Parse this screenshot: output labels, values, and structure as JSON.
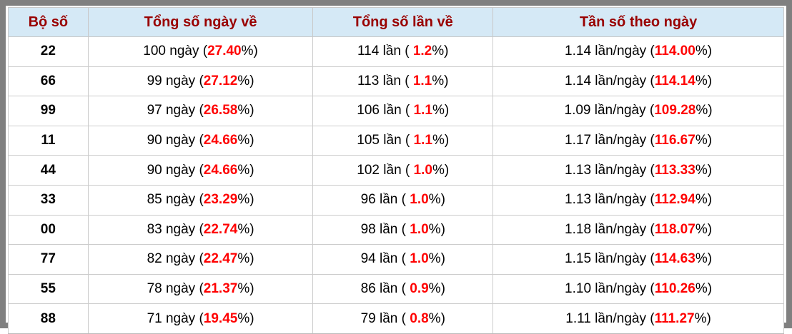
{
  "colors": {
    "frame_border": "#808080",
    "header_bg": "#d5e9f6",
    "header_text": "#990000",
    "highlight_red": "#ff0000",
    "body_text": "#000000",
    "grid_line": "#cccccc"
  },
  "table": {
    "headers": [
      "Bộ số",
      "Tổng số ngày về",
      "Tổng số lần về",
      "Tần số theo ngày"
    ],
    "rows": [
      [
        [
          {
            "t": "22"
          }
        ],
        [
          {
            "t": "100 ngày ("
          },
          {
            "t": "27.40",
            "hl": true
          },
          {
            "t": "%)"
          }
        ],
        [
          {
            "t": "114 lần ( "
          },
          {
            "t": "1.2",
            "hl": true
          },
          {
            "t": "%)"
          }
        ],
        [
          {
            "t": "1.14 lần/ngày ("
          },
          {
            "t": "114.00",
            "hl": true
          },
          {
            "t": "%)"
          }
        ]
      ],
      [
        [
          {
            "t": "66"
          }
        ],
        [
          {
            "t": "99 ngày ("
          },
          {
            "t": "27.12",
            "hl": true
          },
          {
            "t": "%)"
          }
        ],
        [
          {
            "t": "113 lần ( "
          },
          {
            "t": "1.1",
            "hl": true
          },
          {
            "t": "%)"
          }
        ],
        [
          {
            "t": "1.14 lần/ngày ("
          },
          {
            "t": "114.14",
            "hl": true
          },
          {
            "t": "%)"
          }
        ]
      ],
      [
        [
          {
            "t": "99"
          }
        ],
        [
          {
            "t": "97 ngày ("
          },
          {
            "t": "26.58",
            "hl": true
          },
          {
            "t": "%)"
          }
        ],
        [
          {
            "t": "106 lần ( "
          },
          {
            "t": "1.1",
            "hl": true
          },
          {
            "t": "%)"
          }
        ],
        [
          {
            "t": "1.09 lần/ngày ("
          },
          {
            "t": "109.28",
            "hl": true
          },
          {
            "t": "%)"
          }
        ]
      ],
      [
        [
          {
            "t": "11"
          }
        ],
        [
          {
            "t": "90 ngày ("
          },
          {
            "t": "24.66",
            "hl": true
          },
          {
            "t": "%)"
          }
        ],
        [
          {
            "t": "105 lần ( "
          },
          {
            "t": "1.1",
            "hl": true
          },
          {
            "t": "%)"
          }
        ],
        [
          {
            "t": "1.17 lần/ngày ("
          },
          {
            "t": "116.67",
            "hl": true
          },
          {
            "t": "%)"
          }
        ]
      ],
      [
        [
          {
            "t": "44"
          }
        ],
        [
          {
            "t": "90 ngày ("
          },
          {
            "t": "24.66",
            "hl": true
          },
          {
            "t": "%)"
          }
        ],
        [
          {
            "t": "102 lần ( "
          },
          {
            "t": "1.0",
            "hl": true
          },
          {
            "t": "%)"
          }
        ],
        [
          {
            "t": "1.13 lần/ngày ("
          },
          {
            "t": "113.33",
            "hl": true
          },
          {
            "t": "%)"
          }
        ]
      ],
      [
        [
          {
            "t": "33"
          }
        ],
        [
          {
            "t": "85 ngày ("
          },
          {
            "t": "23.29",
            "hl": true
          },
          {
            "t": "%)"
          }
        ],
        [
          {
            "t": "96 lần ( "
          },
          {
            "t": "1.0",
            "hl": true
          },
          {
            "t": "%)"
          }
        ],
        [
          {
            "t": "1.13 lần/ngày ("
          },
          {
            "t": "112.94",
            "hl": true
          },
          {
            "t": "%)"
          }
        ]
      ],
      [
        [
          {
            "t": "00"
          }
        ],
        [
          {
            "t": "83 ngày ("
          },
          {
            "t": "22.74",
            "hl": true
          },
          {
            "t": "%)"
          }
        ],
        [
          {
            "t": "98 lần ( "
          },
          {
            "t": "1.0",
            "hl": true
          },
          {
            "t": "%)"
          }
        ],
        [
          {
            "t": "1.18 lần/ngày ("
          },
          {
            "t": "118.07",
            "hl": true
          },
          {
            "t": "%)"
          }
        ]
      ],
      [
        [
          {
            "t": "77"
          }
        ],
        [
          {
            "t": "82 ngày ("
          },
          {
            "t": "22.47",
            "hl": true
          },
          {
            "t": "%)"
          }
        ],
        [
          {
            "t": "94 lần ( "
          },
          {
            "t": "1.0",
            "hl": true
          },
          {
            "t": "%)"
          }
        ],
        [
          {
            "t": "1.15 lần/ngày ("
          },
          {
            "t": "114.63",
            "hl": true
          },
          {
            "t": "%)"
          }
        ]
      ],
      [
        [
          {
            "t": "55"
          }
        ],
        [
          {
            "t": "78 ngày ("
          },
          {
            "t": "21.37",
            "hl": true
          },
          {
            "t": "%)"
          }
        ],
        [
          {
            "t": "86 lần ( "
          },
          {
            "t": "0.9",
            "hl": true
          },
          {
            "t": "%)"
          }
        ],
        [
          {
            "t": "1.10 lần/ngày ("
          },
          {
            "t": "110.26",
            "hl": true
          },
          {
            "t": "%)"
          }
        ]
      ],
      [
        [
          {
            "t": "88"
          }
        ],
        [
          {
            "t": "71 ngày ("
          },
          {
            "t": "19.45",
            "hl": true
          },
          {
            "t": "%)"
          }
        ],
        [
          {
            "t": "79 lần ( "
          },
          {
            "t": "0.8",
            "hl": true
          },
          {
            "t": "%)"
          }
        ],
        [
          {
            "t": "1.11 lần/ngày ("
          },
          {
            "t": "111.27",
            "hl": true
          },
          {
            "t": "%)"
          }
        ]
      ]
    ]
  }
}
